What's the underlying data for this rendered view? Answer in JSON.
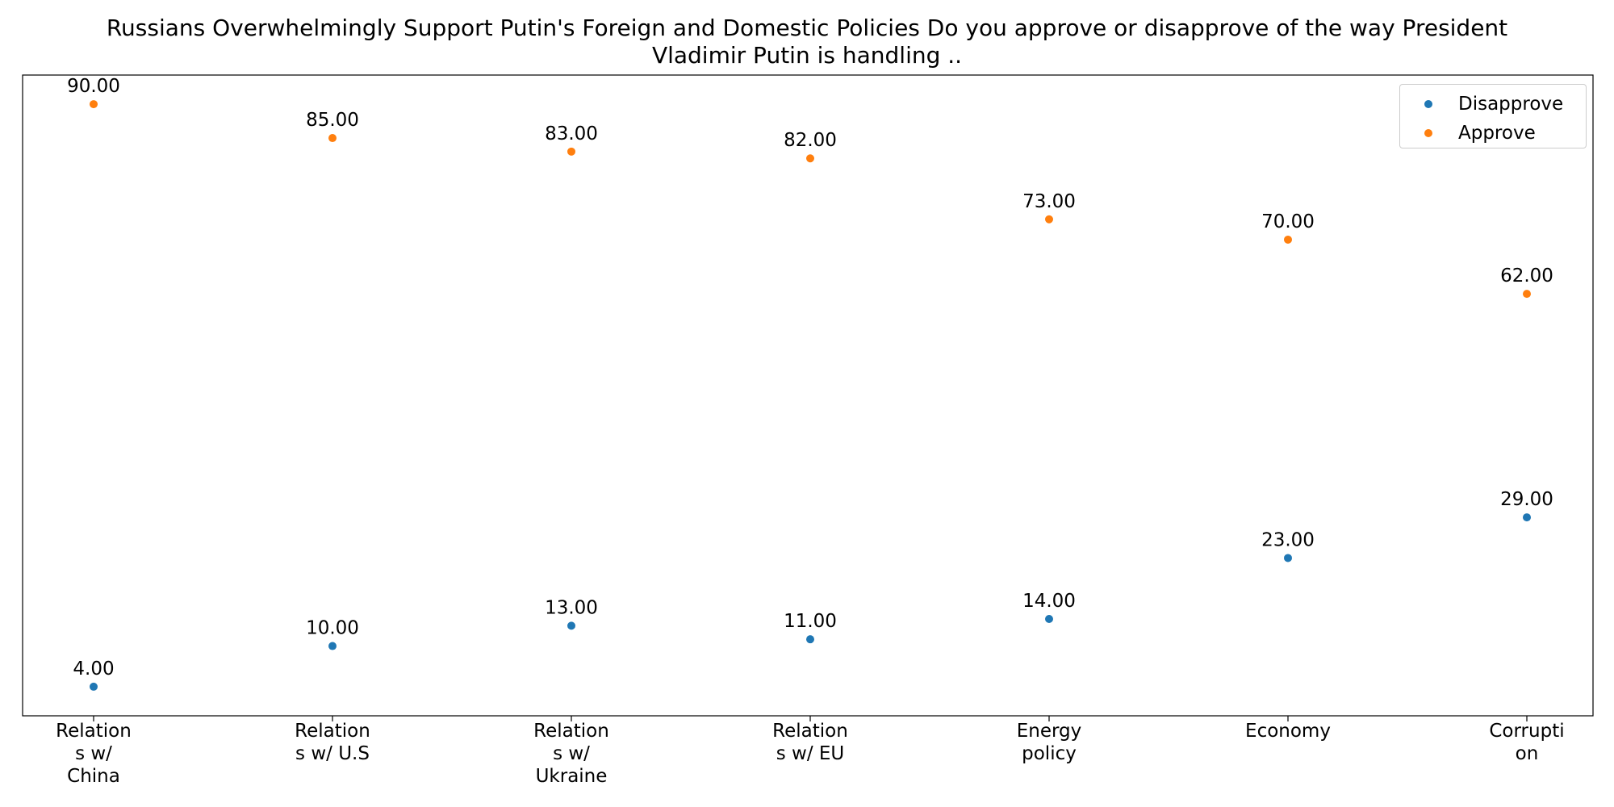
{
  "chart_data": {
    "type": "scatter",
    "title_lines": [
      "Russians Overwhelmingly Support Putin's Foreign and Domestic Policies Do you approve or disapprove of the way President",
      "Vladimir Putin is handling .."
    ],
    "categories": [
      [
        "Relation",
        "s w/",
        "China"
      ],
      [
        "Relation",
        "s w/ U.S"
      ],
      [
        "Relation",
        "s w/",
        "Ukraine"
      ],
      [
        "Relation",
        "s w/ EU"
      ],
      [
        "Energy",
        "policy"
      ],
      [
        "Economy"
      ],
      [
        "Corrupti",
        "on"
      ]
    ],
    "series": [
      {
        "name": "Disapprove",
        "color": "#1f77b4",
        "values": [
          4,
          10,
          13,
          11,
          14,
          23,
          29
        ],
        "labels": [
          "4.00",
          "10.00",
          "13.00",
          "11.00",
          "14.00",
          "23.00",
          "29.00"
        ]
      },
      {
        "name": "Approve",
        "color": "#ff7f0e",
        "values": [
          90,
          85,
          83,
          82,
          73,
          70,
          62
        ],
        "labels": [
          "90.00",
          "85.00",
          "83.00",
          "82.00",
          "73.00",
          "70.00",
          "62.00"
        ]
      }
    ],
    "ylim": [
      -0.3,
      94.3
    ],
    "y_ticks_shown": false,
    "grid": false,
    "legend_position": "top-right"
  }
}
